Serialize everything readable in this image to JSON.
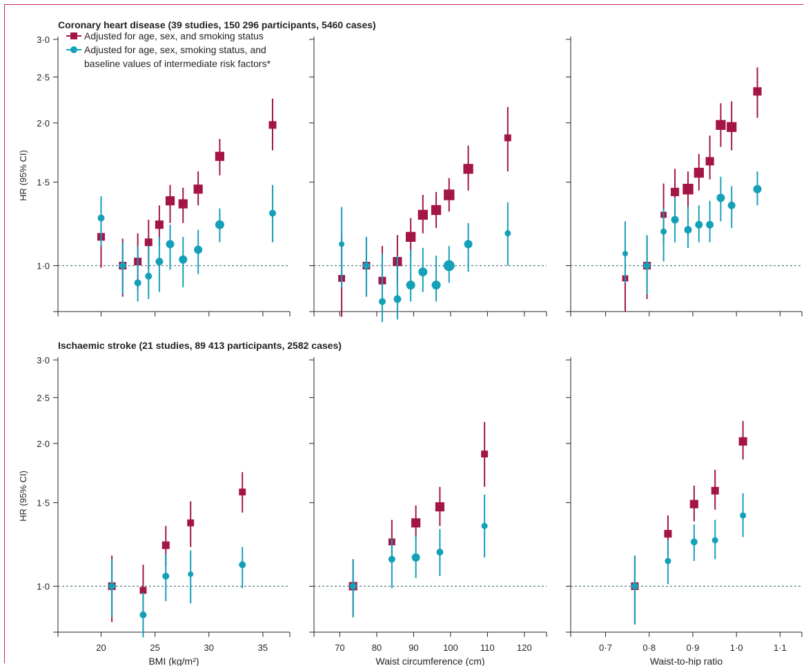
{
  "chart_data": [
    {
      "id": "chd-bmi",
      "row_title": "Coronary heart disease (39 studies, 150 296 participants, 5460 cases)",
      "type": "scatter",
      "xlabel": "",
      "ylabel": "HR (95% CI)",
      "ylog": true,
      "xlim": [
        16,
        37.5
      ],
      "xticks": [
        20,
        25,
        30,
        35
      ],
      "xticklabels": [
        "20",
        "25",
        "30",
        "35"
      ],
      "ylim": [
        0.8,
        3.0
      ],
      "yticks": [
        1.0,
        1.5,
        2.0,
        2.5,
        3.0
      ],
      "yticklabels": [
        "1·0",
        "1·5",
        "2·0",
        "2·5",
        "3·0"
      ],
      "series": [
        {
          "name": "Adjusted for age, sex, and smoking status",
          "marker": "square",
          "color": "#a31545",
          "x": [
            20.0,
            22.0,
            23.4,
            24.4,
            25.4,
            26.4,
            27.6,
            29.0,
            31.0,
            35.9
          ],
          "y": [
            1.15,
            1.0,
            1.02,
            1.12,
            1.22,
            1.37,
            1.35,
            1.45,
            1.7,
            1.98
          ],
          "lo": [
            0.99,
            0.86,
            0.89,
            0.98,
            1.1,
            1.23,
            1.23,
            1.34,
            1.55,
            1.75
          ],
          "hi": [
            1.27,
            1.14,
            1.17,
            1.25,
            1.34,
            1.48,
            1.46,
            1.58,
            1.85,
            2.25
          ],
          "size": [
            1,
            1,
            1,
            1,
            1.1,
            1.2,
            1.2,
            1.2,
            1.2,
            1
          ]
        },
        {
          "name": "Adjusted for age, sex, smoking status, and baseline values of intermediate risk factors*",
          "marker": "circle",
          "color": "#14a0b8",
          "x": [
            20.0,
            22.0,
            23.4,
            24.4,
            25.4,
            26.4,
            27.6,
            29.0,
            31.0,
            35.9
          ],
          "y": [
            1.26,
            1.0,
            0.92,
            0.95,
            1.02,
            1.11,
            1.03,
            1.08,
            1.22,
            1.29
          ],
          "lo": [
            1.1,
            0.87,
            0.84,
            0.85,
            0.88,
            0.98,
            0.9,
            0.96,
            1.12,
            1.12
          ],
          "hi": [
            1.4,
            1.12,
            1.1,
            1.1,
            1.15,
            1.22,
            1.15,
            1.19,
            1.32,
            1.48
          ],
          "size": [
            1,
            1,
            1,
            1,
            1.1,
            1.2,
            1.2,
            1.2,
            1.3,
            1
          ]
        }
      ]
    },
    {
      "id": "chd-wc",
      "type": "scatter",
      "xlabel": "",
      "ylog": true,
      "xlim": [
        63,
        126
      ],
      "xticks": [
        70,
        80,
        90,
        100,
        110,
        120
      ],
      "xticklabels": [
        "70",
        "80",
        "90",
        "100",
        "110",
        "120"
      ],
      "ylim": [
        0.8,
        3.0
      ],
      "series": [
        {
          "name": "Adjusted for age, sex, and smoking status",
          "marker": "square",
          "color": "#a31545",
          "x": [
            70.5,
            77.2,
            81.5,
            85.6,
            89.2,
            92.5,
            96.1,
            99.6,
            104.8,
            115.5
          ],
          "y": [
            0.94,
            1.0,
            0.93,
            1.02,
            1.15,
            1.28,
            1.31,
            1.41,
            1.6,
            1.86
          ],
          "lo": [
            0.78,
            0.86,
            0.84,
            0.91,
            1.04,
            1.17,
            1.2,
            1.3,
            1.44,
            1.58
          ],
          "hi": [
            1.17,
            1.15,
            1.1,
            1.16,
            1.26,
            1.41,
            1.43,
            1.53,
            1.79,
            2.16
          ],
          "size": [
            0.9,
            1,
            1,
            1.2,
            1.3,
            1.3,
            1.3,
            1.4,
            1.3,
            0.9
          ]
        },
        {
          "name": "Adjusted for age, sex, smoking status, and baseline values of intermediate risk factors*",
          "marker": "circle",
          "color": "#14a0b8",
          "x": [
            70.5,
            77.2,
            81.5,
            85.6,
            89.2,
            92.5,
            96.1,
            99.6,
            104.8,
            115.5
          ],
          "y": [
            1.11,
            1.0,
            0.84,
            0.85,
            0.91,
            0.97,
            0.91,
            1.0,
            1.11,
            1.17
          ],
          "lo": [
            0.9,
            0.86,
            0.76,
            0.77,
            0.84,
            0.88,
            0.84,
            0.92,
            0.97,
            1.0
          ],
          "hi": [
            1.33,
            1.15,
            1.06,
            1.05,
            1.08,
            1.09,
            1.05,
            1.1,
            1.23,
            1.36
          ],
          "size": [
            0.8,
            1,
            1,
            1.1,
            1.3,
            1.3,
            1.3,
            1.6,
            1.2,
            0.9
          ]
        }
      ]
    },
    {
      "id": "chd-whr",
      "type": "scatter",
      "xlabel": "",
      "ylog": true,
      "xlim": [
        0.62,
        1.15
      ],
      "xticks": [
        0.7,
        0.8,
        0.9,
        1.0,
        1.1
      ],
      "xticklabels": [
        "0·7",
        "0·8",
        "0·9",
        "1·0",
        "1·1"
      ],
      "ylim": [
        0.8,
        3.0
      ],
      "series": [
        {
          "name": "Adjusted for age, sex, and smoking status",
          "marker": "square",
          "color": "#a31545",
          "x": [
            0.745,
            0.795,
            0.833,
            0.859,
            0.889,
            0.914,
            0.939,
            0.964,
            0.989,
            1.048
          ],
          "y": [
            0.94,
            1.0,
            1.28,
            1.43,
            1.45,
            1.57,
            1.66,
            1.98,
            1.96,
            2.33
          ],
          "lo": [
            0.8,
            0.85,
            1.11,
            1.27,
            1.33,
            1.44,
            1.52,
            1.78,
            1.75,
            2.05
          ],
          "hi": [
            1.15,
            1.15,
            1.49,
            1.6,
            1.58,
            1.72,
            1.88,
            2.2,
            2.22,
            2.62
          ],
          "size": [
            0.8,
            1,
            0.8,
            1.1,
            1.4,
            1.3,
            1.1,
            1.3,
            1.3,
            1.1
          ]
        },
        {
          "name": "Adjusted for age, sex, smoking status, and baseline values of intermediate risk factors*",
          "marker": "circle",
          "color": "#14a0b8",
          "x": [
            0.745,
            0.795,
            0.833,
            0.859,
            0.889,
            0.914,
            0.939,
            0.964,
            0.989,
            1.048
          ],
          "y": [
            1.06,
            1.0,
            1.18,
            1.25,
            1.19,
            1.22,
            1.22,
            1.39,
            1.34,
            1.45
          ],
          "lo": [
            0.92,
            0.87,
            1.02,
            1.12,
            1.09,
            1.12,
            1.12,
            1.24,
            1.2,
            1.34
          ],
          "hi": [
            1.24,
            1.16,
            1.32,
            1.39,
            1.33,
            1.34,
            1.37,
            1.54,
            1.47,
            1.58
          ],
          "size": [
            0.8,
            1,
            0.9,
            1.1,
            1.1,
            1.1,
            1.1,
            1.2,
            1.1,
            1.2
          ]
        }
      ]
    },
    {
      "id": "stroke-bmi",
      "row_title": "Ischaemic stroke (21 studies, 89 413 participants, 2582 cases)",
      "type": "scatter",
      "xlabel": "BMI (kg/m²)",
      "ylabel": "HR (95% CI)",
      "ylog": true,
      "xlim": [
        16,
        37.5
      ],
      "xticks": [
        20,
        25,
        30,
        35
      ],
      "xticklabels": [
        "20",
        "25",
        "30",
        "35"
      ],
      "ylim": [
        0.8,
        3.0
      ],
      "yticks": [
        1.0,
        1.5,
        2.0,
        2.5,
        3.0
      ],
      "yticklabels": [
        "1·0",
        "1·5",
        "2·0",
        "2·5",
        "3·0"
      ],
      "series": [
        {
          "name": "Adjusted for age, sex, and smoking status",
          "marker": "square",
          "color": "#a31545",
          "x": [
            21.0,
            23.9,
            26.0,
            28.3,
            33.1
          ],
          "y": [
            1.0,
            0.98,
            1.22,
            1.36,
            1.58
          ],
          "lo": [
            0.84,
            0.86,
            1.1,
            1.21,
            1.43
          ],
          "hi": [
            1.16,
            1.11,
            1.34,
            1.51,
            1.74
          ],
          "size": [
            1,
            0.9,
            1,
            0.9,
            0.9
          ]
        },
        {
          "name": "Adjusted for age, sex, smoking status, and baseline values of intermediate risk factors*",
          "marker": "circle",
          "color": "#14a0b8",
          "x": [
            21.0,
            23.9,
            26.0,
            28.3,
            33.1
          ],
          "y": [
            1.0,
            0.87,
            1.05,
            1.06,
            1.11
          ],
          "lo": [
            0.86,
            0.78,
            0.93,
            0.92,
            0.99
          ],
          "hi": [
            1.14,
            0.97,
            1.17,
            1.19,
            1.21
          ],
          "size": [
            1,
            1,
            1,
            0.8,
            1
          ]
        }
      ]
    },
    {
      "id": "stroke-wc",
      "type": "scatter",
      "xlabel": "Waist circumference (cm)",
      "ylog": true,
      "xlim": [
        63,
        126
      ],
      "xticks": [
        70,
        80,
        90,
        100,
        110,
        120
      ],
      "xticklabels": [
        "70",
        "80",
        "90",
        "100",
        "110",
        "120"
      ],
      "ylim": [
        0.8,
        3.0
      ],
      "series": [
        {
          "name": "Adjusted for age, sex, and smoking status",
          "marker": "square",
          "color": "#a31545",
          "x": [
            73.6,
            84.1,
            90.6,
            97.1,
            109.2
          ],
          "y": [
            1.0,
            1.24,
            1.36,
            1.47,
            1.9
          ],
          "lo": [
            0.86,
            1.13,
            1.26,
            1.34,
            1.62
          ],
          "hi": [
            1.14,
            1.38,
            1.48,
            1.62,
            2.22
          ],
          "size": [
            1.1,
            0.9,
            1.2,
            1.2,
            0.9
          ]
        },
        {
          "name": "Adjusted for age, sex, smoking status, and baseline values of intermediate risk factors*",
          "marker": "circle",
          "color": "#14a0b8",
          "x": [
            73.6,
            84.1,
            90.6,
            97.1,
            109.2
          ],
          "y": [
            1.0,
            1.14,
            1.15,
            1.18,
            1.34
          ],
          "lo": [
            0.86,
            0.99,
            1.04,
            1.05,
            1.15
          ],
          "hi": [
            1.14,
            1.26,
            1.28,
            1.32,
            1.56
          ],
          "size": [
            1,
            1,
            1.2,
            1,
            0.9
          ]
        }
      ]
    },
    {
      "id": "stroke-whr",
      "type": "scatter",
      "xlabel": "Waist-to-hip ratio",
      "ylog": true,
      "xlim": [
        0.62,
        1.15
      ],
      "xticks": [
        0.7,
        0.8,
        0.9,
        1.0,
        1.1
      ],
      "xticklabels": [
        "0·7",
        "0·8",
        "0·9",
        "1·0",
        "1·1"
      ],
      "ylim": [
        0.8,
        3.0
      ],
      "series": [
        {
          "name": "Adjusted for age, sex, and smoking status",
          "marker": "square",
          "color": "#a31545",
          "x": [
            0.767,
            0.843,
            0.903,
            0.951,
            1.015
          ],
          "y": [
            1.0,
            1.29,
            1.49,
            1.59,
            2.02
          ],
          "lo": [
            0.83,
            1.16,
            1.37,
            1.45,
            1.85
          ],
          "hi": [
            1.16,
            1.41,
            1.63,
            1.76,
            2.23
          ],
          "size": [
            1,
            1,
            1.1,
            1,
            1.1
          ]
        },
        {
          "name": "Adjusted for age, sex, smoking status, and baseline values of intermediate risk factors*",
          "marker": "circle",
          "color": "#14a0b8",
          "x": [
            0.767,
            0.843,
            0.903,
            0.951,
            1.015
          ],
          "y": [
            1.0,
            1.13,
            1.24,
            1.25,
            1.41
          ],
          "lo": [
            0.83,
            1.01,
            1.13,
            1.14,
            1.27
          ],
          "hi": [
            1.16,
            1.25,
            1.35,
            1.38,
            1.57
          ],
          "size": [
            1,
            0.9,
            1,
            0.9,
            0.9
          ]
        }
      ]
    }
  ],
  "legend": {
    "items": [
      {
        "label": "Adjusted for age, sex, and smoking status",
        "marker": "square",
        "color": "#a31545"
      },
      {
        "label": "Adjusted for age, sex, smoking status, and",
        "label_line2": "baseline values of intermediate risk factors*",
        "marker": "circle",
        "color": "#14a0b8"
      }
    ]
  },
  "colors": {
    "reference_line": "#5a7d8c",
    "axis": "#231f20",
    "frame": "#c41e5a"
  }
}
